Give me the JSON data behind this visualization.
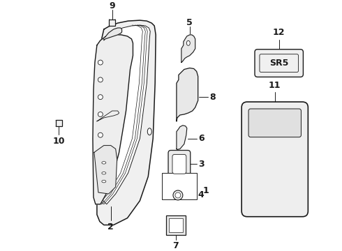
{
  "bg_color": "#ffffff",
  "line_color": "#1a1a1a",
  "figsize": [
    4.9,
    3.6
  ],
  "dpi": 100,
  "fill_color": "#f4f4f4",
  "fill_color2": "#ebebeb"
}
